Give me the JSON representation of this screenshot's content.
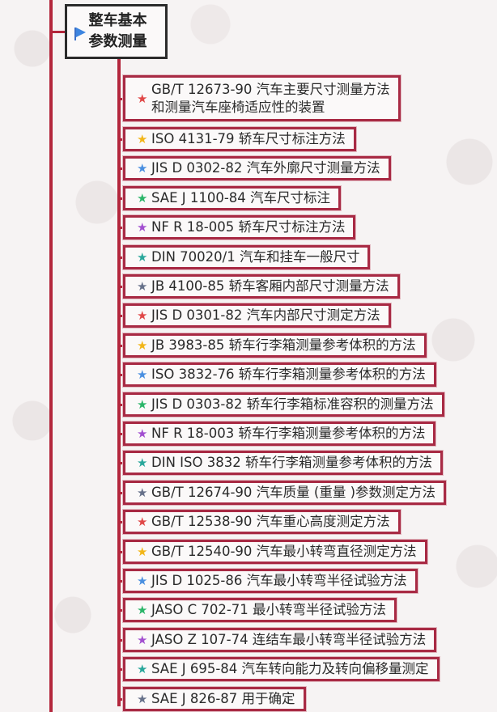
{
  "title": {
    "text": "整车基本\n参数测量",
    "icon": "flag-icon"
  },
  "star_colors": [
    "#e04848",
    "#f2b619",
    "#4a8fe0",
    "#2bb569",
    "#a24fd0",
    "#2aa79b",
    "#67718a"
  ],
  "items": [
    {
      "label": "GB/T 12673-90 汽车主要尺寸测量方法\n和测量汽车座椅适应性的装置"
    },
    {
      "label": "ISO 4131-79 轿车尺寸标注方法"
    },
    {
      "label": "JIS D 0302-82 汽车外廓尺寸测量方法"
    },
    {
      "label": "SAE J 1100-84 汽车尺寸标注"
    },
    {
      "label": "NF R 18-005 轿车尺寸标注方法"
    },
    {
      "label": "DIN 70020/1 汽车和挂车一般尺寸"
    },
    {
      "label": "JB 4100-85 轿车客厢内部尺寸测量方法"
    },
    {
      "label": "JIS D 0301-82 汽车内部尺寸测定方法"
    },
    {
      "label": "JB 3983-85 轿车行李箱测量参考体积的方法"
    },
    {
      "label": "ISO 3832-76 轿车行李箱测量参考体积的方法"
    },
    {
      "label": "JIS D 0303-82 轿车行李箱标准容积的测量方法"
    },
    {
      "label": "NF R 18-003 轿车行李箱测量参考体积的方法"
    },
    {
      "label": "DIN ISO 3832 轿车行李箱测量参考体积的方法"
    },
    {
      "label": "GB/T 12674-90 汽车质量 (重量 )参数测定方法"
    },
    {
      "label": "GB/T 12538-90 汽车重心高度测定方法"
    },
    {
      "label": "GB/T 12540-90 汽车最小转弯直径测定方法"
    },
    {
      "label": "JIS D 1025-86 汽车最小转弯半径试验方法"
    },
    {
      "label": "JASO C 702-71 最小转弯半径试验方法"
    },
    {
      "label": "JASO Z 107-74 连结车最小转弯半径试验方法"
    },
    {
      "label": "SAE J 695-84 汽车转向能力及转向偏移量测定"
    },
    {
      "label": "SAE J 826-87 用于确定"
    }
  ]
}
